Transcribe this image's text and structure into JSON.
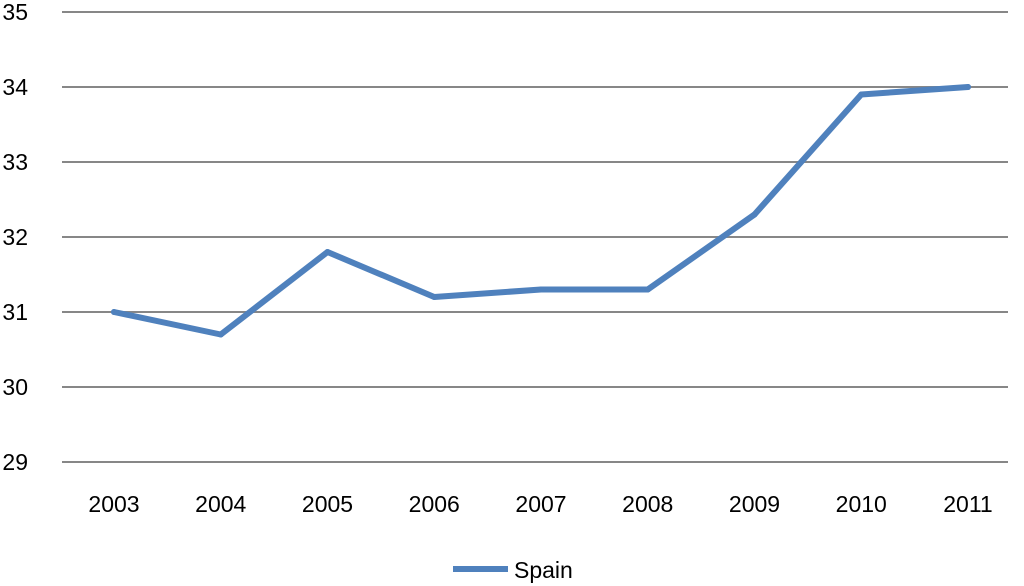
{
  "chart_data": {
    "type": "line",
    "categories": [
      "2003",
      "2004",
      "2005",
      "2006",
      "2007",
      "2008",
      "2009",
      "2010",
      "2011"
    ],
    "series": [
      {
        "name": "Spain",
        "values": [
          31.0,
          30.7,
          31.8,
          31.2,
          31.3,
          31.3,
          32.3,
          33.9,
          34.0
        ],
        "color": "#4F81BD"
      }
    ],
    "ylim": [
      29,
      35
    ],
    "yticks": [
      "29",
      "30",
      "31",
      "32",
      "33",
      "34",
      "35"
    ],
    "grid": true,
    "gridline_color": "#878787",
    "legend_position": "bottom-center",
    "title": "",
    "xlabel": "",
    "ylabel": ""
  }
}
